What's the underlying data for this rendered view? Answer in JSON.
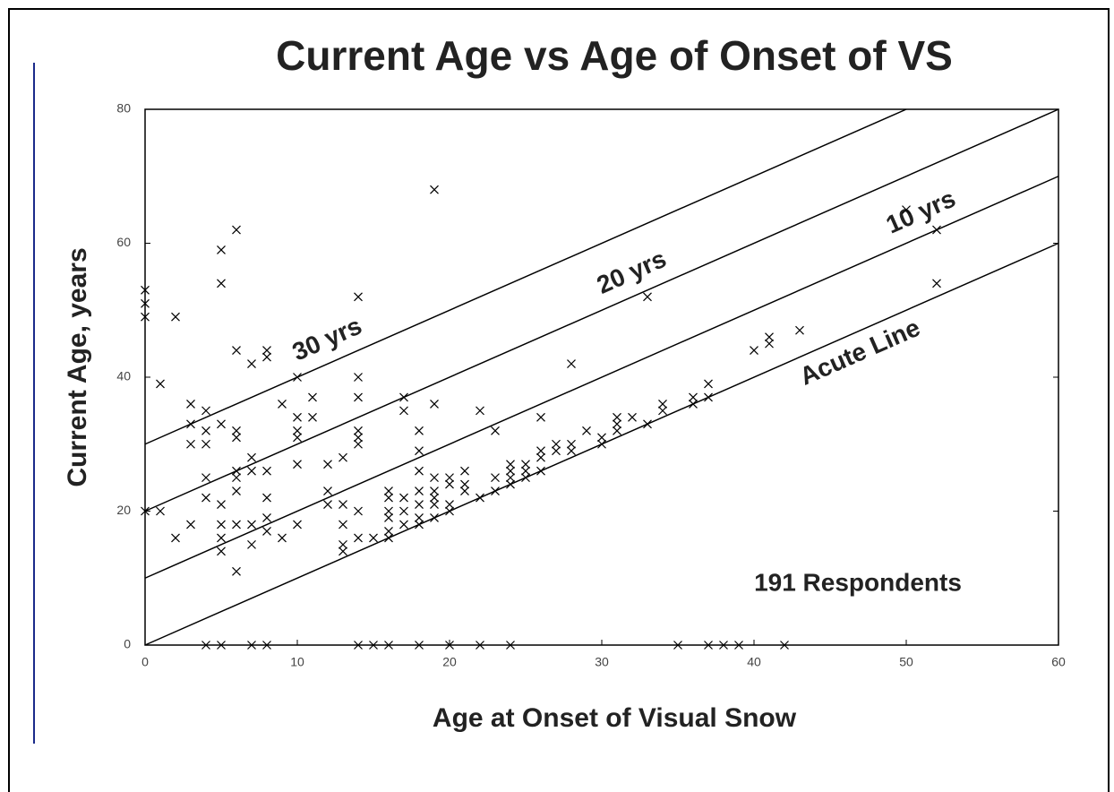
{
  "chart_data": {
    "type": "scatter",
    "title": "Current Age vs Age of Onset of VS",
    "xlabel": "Age at Onset of Visual Snow",
    "ylabel": "Current Age, years",
    "annotation": "191 Respondents",
    "xlim": [
      0,
      60
    ],
    "ylim": [
      0,
      80
    ],
    "xticks": [
      0,
      10,
      20,
      30,
      40,
      50,
      60
    ],
    "yticks": [
      0,
      20,
      40,
      60,
      80
    ],
    "color": "#000000",
    "marker": "x",
    "reference_lines": [
      {
        "label": "Acute Line",
        "offset": 0
      },
      {
        "label": "10 yrs",
        "offset": 10
      },
      {
        "label": "20 yrs",
        "offset": 20
      },
      {
        "label": "30 yrs",
        "offset": 30
      }
    ],
    "x": [
      0,
      0,
      0,
      0,
      1,
      1,
      2,
      2,
      3,
      3,
      3,
      3,
      4,
      4,
      4,
      4,
      4,
      4,
      5,
      5,
      5,
      5,
      5,
      5,
      5,
      5,
      6,
      6,
      6,
      6,
      6,
      6,
      6,
      6,
      6,
      7,
      7,
      7,
      7,
      7,
      7,
      8,
      8,
      8,
      8,
      8,
      8,
      8,
      9,
      9,
      10,
      10,
      10,
      10,
      10,
      10,
      11,
      11,
      12,
      12,
      12,
      13,
      13,
      13,
      13,
      13,
      14,
      14,
      14,
      14,
      14,
      14,
      14,
      14,
      14,
      15,
      15,
      16,
      16,
      16,
      16,
      16,
      16,
      16,
      17,
      17,
      17,
      17,
      17,
      18,
      18,
      18,
      18,
      18,
      18,
      18,
      18,
      19,
      19,
      19,
      19,
      19,
      19,
      19,
      20,
      20,
      20,
      20,
      20,
      21,
      21,
      21,
      22,
      22,
      22,
      23,
      23,
      23,
      24,
      24,
      24,
      24,
      24,
      25,
      25,
      25,
      26,
      26,
      26,
      26,
      27,
      27,
      28,
      28,
      28,
      29,
      30,
      30,
      31,
      31,
      31,
      32,
      33,
      33,
      34,
      34,
      35,
      36,
      36,
      37,
      37,
      37,
      38,
      39,
      40,
      41,
      41,
      42,
      43,
      50,
      52,
      52
    ],
    "values": [
      53,
      51,
      49,
      20,
      20,
      39,
      16,
      49,
      18,
      30,
      33,
      36,
      35,
      32,
      30,
      25,
      22,
      0,
      59,
      54,
      33,
      21,
      18,
      16,
      14,
      0,
      62,
      44,
      32,
      31,
      26,
      25,
      23,
      18,
      11,
      42,
      28,
      26,
      18,
      15,
      0,
      44,
      43,
      26,
      22,
      19,
      17,
      0,
      36,
      16,
      40,
      34,
      32,
      31,
      27,
      18,
      37,
      34,
      27,
      23,
      21,
      28,
      21,
      18,
      15,
      14,
      52,
      40,
      37,
      32,
      31,
      30,
      20,
      16,
      0,
      16,
      0,
      23,
      22,
      20,
      19,
      17,
      16,
      0,
      37,
      35,
      22,
      20,
      18,
      32,
      29,
      26,
      23,
      21,
      19,
      18,
      0,
      68,
      36,
      25,
      23,
      22,
      21,
      19,
      25,
      24,
      21,
      20,
      0,
      26,
      24,
      23,
      35,
      22,
      0,
      32,
      25,
      23,
      27,
      26,
      25,
      24,
      0,
      27,
      26,
      25,
      34,
      29,
      28,
      26,
      30,
      29,
      42,
      30,
      29,
      32,
      31,
      30,
      34,
      33,
      32,
      34,
      52,
      33,
      36,
      35,
      0,
      37,
      36,
      39,
      37,
      0,
      0,
      0,
      44,
      46,
      45,
      0,
      47,
      65,
      62,
      54
    ]
  }
}
